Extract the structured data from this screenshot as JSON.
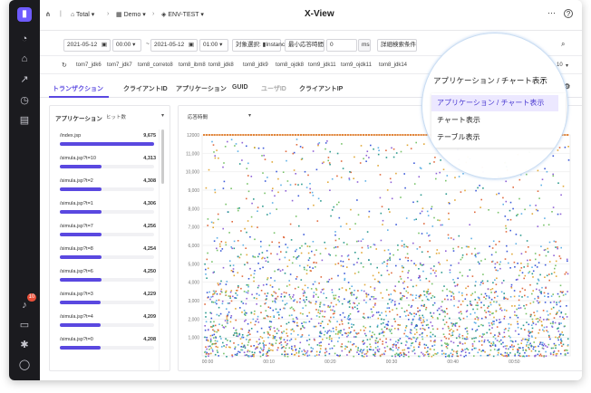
{
  "app": {
    "title": "X-View"
  },
  "breadcrumb": {
    "items": [
      "Total",
      "Demo",
      "ENV-TEST"
    ]
  },
  "filters": {
    "date_from": "2021-05-12",
    "time_from": "00:00",
    "date_to": "2021-05-12",
    "time_to": "01:00",
    "target_label": "対象選択:",
    "target_value": "Instance",
    "min_resp_label": "最小応答時間",
    "min_resp_value": "0",
    "min_resp_unit": "ms",
    "advanced_label": "詳細検索条件"
  },
  "instances": {
    "items": [
      "tom7_jdk6",
      "tom7_jdk7",
      "tom8_correto8",
      "tom8_ibm8",
      "tom8_jdk8",
      "tom8_jdk9",
      "tom8_ojdk8",
      "tom9_jdk11",
      "tom9_ojdk11",
      "tom8_jdk14"
    ],
    "count": "10"
  },
  "tabs": [
    "トランザクション",
    "クライアントID",
    "アプリケーション",
    "GUID",
    "ユーザID",
    "クライアントIP"
  ],
  "left_panel": {
    "title": "アプリケーション",
    "subtitle": "ヒット数",
    "items": [
      {
        "name": "/index.jsp",
        "count": "9,675",
        "ratio": 1.0
      },
      {
        "name": "/simula.jsp?t=10",
        "count": "4,313",
        "ratio": 0.446
      },
      {
        "name": "/simula.jsp?t=2",
        "count": "4,308",
        "ratio": 0.445
      },
      {
        "name": "/simula.jsp?t=1",
        "count": "4,306",
        "ratio": 0.445
      },
      {
        "name": "/simula.jsp?t=7",
        "count": "4,256",
        "ratio": 0.44
      },
      {
        "name": "/simula.jsp?t=8",
        "count": "4,254",
        "ratio": 0.44
      },
      {
        "name": "/simula.jsp?t=6",
        "count": "4,250",
        "ratio": 0.439
      },
      {
        "name": "/simula.jsp?t=3",
        "count": "4,229",
        "ratio": 0.437
      },
      {
        "name": "/simula.jsp?t=4",
        "count": "4,209",
        "ratio": 0.435
      },
      {
        "name": "/simula.jsp?t=0",
        "count": "4,208",
        "ratio": 0.435
      }
    ]
  },
  "chart_panel": {
    "title": "応答時間"
  },
  "chart_data": {
    "type": "scatter",
    "x_ticks": [
      "00:00",
      "00:10",
      "00:20",
      "00:30",
      "00:40",
      "00:50"
    ],
    "y_ticks": [
      1000,
      2000,
      3000,
      4000,
      5000,
      6000,
      7000,
      8000,
      9000,
      10000,
      11000,
      12000
    ],
    "y_tick_labels": [
      "1,000",
      "2,000",
      "3,000",
      "4,000",
      "5,000",
      "6,000",
      "7,000",
      "8,000",
      "9,000",
      "10,000",
      "11,000",
      "12000"
    ],
    "ylim": [
      0,
      12000
    ],
    "xlim_minutes": [
      0,
      60
    ],
    "series_colors": [
      "#3d5bd9",
      "#5fb0e6",
      "#79c36a",
      "#e2a93a",
      "#8f62d6",
      "#e06b3f",
      "#2e9b8f"
    ],
    "cap_color": "#e2853a",
    "density_note": "dense distribution under 4000ms, sparse upward"
  },
  "dropdown": {
    "selected": "アプリケーション / チャート表示",
    "options": [
      "アプリケーション / チャート表示",
      "チャート表示",
      "テーブル表示"
    ]
  }
}
